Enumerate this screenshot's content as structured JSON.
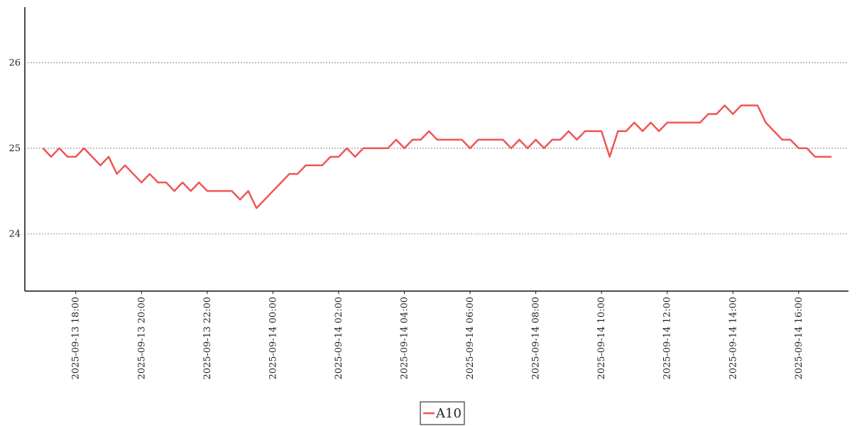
{
  "chart_data": {
    "type": "line",
    "x": [
      "2025-09-13 17:00",
      "2025-09-13 17:15",
      "2025-09-13 17:30",
      "2025-09-13 17:45",
      "2025-09-13 18:00",
      "2025-09-13 18:15",
      "2025-09-13 18:30",
      "2025-09-13 18:45",
      "2025-09-13 19:00",
      "2025-09-13 19:15",
      "2025-09-13 19:30",
      "2025-09-13 19:45",
      "2025-09-13 20:00",
      "2025-09-13 20:15",
      "2025-09-13 20:30",
      "2025-09-13 20:45",
      "2025-09-13 21:00",
      "2025-09-13 21:15",
      "2025-09-13 21:30",
      "2025-09-13 21:45",
      "2025-09-13 22:00",
      "2025-09-13 22:15",
      "2025-09-13 22:30",
      "2025-09-13 22:45",
      "2025-09-13 23:00",
      "2025-09-13 23:15",
      "2025-09-13 23:30",
      "2025-09-13 23:45",
      "2025-09-14 00:00",
      "2025-09-14 00:15",
      "2025-09-14 00:30",
      "2025-09-14 00:45",
      "2025-09-14 01:00",
      "2025-09-14 01:15",
      "2025-09-14 01:30",
      "2025-09-14 01:45",
      "2025-09-14 02:00",
      "2025-09-14 02:15",
      "2025-09-14 02:30",
      "2025-09-14 02:45",
      "2025-09-14 03:00",
      "2025-09-14 03:15",
      "2025-09-14 03:30",
      "2025-09-14 03:45",
      "2025-09-14 04:00",
      "2025-09-14 04:15",
      "2025-09-14 04:30",
      "2025-09-14 04:45",
      "2025-09-14 05:00",
      "2025-09-14 05:15",
      "2025-09-14 05:30",
      "2025-09-14 05:45",
      "2025-09-14 06:00",
      "2025-09-14 06:15",
      "2025-09-14 06:30",
      "2025-09-14 06:45",
      "2025-09-14 07:00",
      "2025-09-14 07:15",
      "2025-09-14 07:30",
      "2025-09-14 07:45",
      "2025-09-14 08:00",
      "2025-09-14 08:15",
      "2025-09-14 08:30",
      "2025-09-14 08:45",
      "2025-09-14 09:00",
      "2025-09-14 09:15",
      "2025-09-14 09:30",
      "2025-09-14 09:45",
      "2025-09-14 10:00",
      "2025-09-14 10:15",
      "2025-09-14 10:30",
      "2025-09-14 10:45",
      "2025-09-14 11:00",
      "2025-09-14 11:15",
      "2025-09-14 11:30",
      "2025-09-14 11:45",
      "2025-09-14 12:00",
      "2025-09-14 12:15",
      "2025-09-14 12:30",
      "2025-09-14 12:45",
      "2025-09-14 13:00",
      "2025-09-14 13:15",
      "2025-09-14 13:30",
      "2025-09-14 13:45",
      "2025-09-14 14:00",
      "2025-09-14 14:15",
      "2025-09-14 14:30",
      "2025-09-14 14:45",
      "2025-09-14 15:00",
      "2025-09-14 15:15",
      "2025-09-14 15:30",
      "2025-09-14 15:45",
      "2025-09-14 16:00",
      "2025-09-14 16:15",
      "2025-09-14 16:30",
      "2025-09-14 16:45",
      "2025-09-14 17:00"
    ],
    "series": [
      {
        "name": "A10",
        "color": "#f05555",
        "values": [
          25.0,
          24.9,
          25.0,
          24.9,
          24.9,
          25.0,
          24.9,
          24.8,
          24.9,
          24.7,
          24.8,
          24.7,
          24.6,
          24.7,
          24.6,
          24.6,
          24.5,
          24.6,
          24.5,
          24.6,
          24.5,
          24.5,
          24.5,
          24.5,
          24.4,
          24.5,
          24.3,
          24.4,
          24.5,
          24.6,
          24.7,
          24.7,
          24.8,
          24.8,
          24.8,
          24.9,
          24.9,
          25.0,
          24.9,
          25.0,
          25.0,
          25.0,
          25.0,
          25.1,
          25.0,
          25.1,
          25.1,
          25.2,
          25.1,
          25.1,
          25.1,
          25.1,
          25.0,
          25.1,
          25.1,
          25.1,
          25.1,
          25.0,
          25.1,
          25.0,
          25.1,
          25.0,
          25.1,
          25.1,
          25.2,
          25.1,
          25.2,
          25.2,
          25.2,
          24.9,
          25.2,
          25.2,
          25.3,
          25.2,
          25.3,
          25.2,
          25.3,
          25.3,
          25.3,
          25.3,
          25.3,
          25.4,
          25.4,
          25.5,
          25.4,
          25.5,
          25.5,
          25.5,
          25.3,
          25.2,
          25.1,
          25.1,
          25.0,
          25.0,
          24.9,
          24.9,
          24.9
        ]
      }
    ],
    "xlim": [
      "2025-09-13 16:27",
      "2025-09-14 17:31"
    ],
    "xticks": [
      "2025-09-13 18:00",
      "2025-09-13 20:00",
      "2025-09-13 22:00",
      "2025-09-14 00:00",
      "2025-09-14 02:00",
      "2025-09-14 04:00",
      "2025-09-14 06:00",
      "2025-09-14 08:00",
      "2025-09-14 10:00",
      "2025-09-14 12:00",
      "2025-09-14 14:00",
      "2025-09-14 16:00"
    ],
    "ylim": [
      23.33,
      26.65
    ],
    "yticks": [
      24,
      25,
      26
    ],
    "grid": true,
    "legend": "bottom"
  }
}
